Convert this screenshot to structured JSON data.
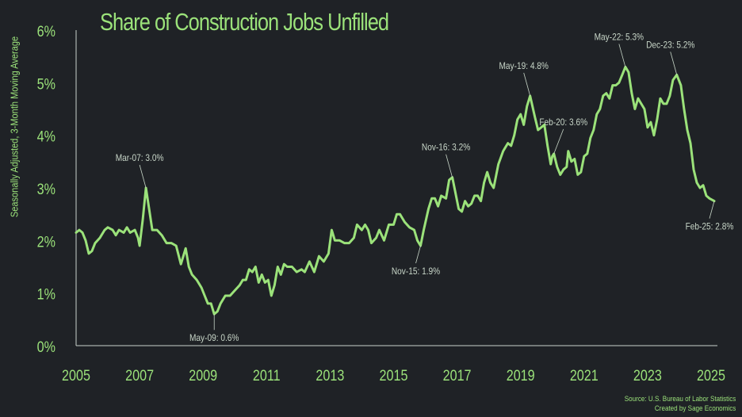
{
  "chart_data": {
    "type": "line",
    "title": "Share of Construction Jobs Unfilled",
    "ylabel": "Seasonally Adjusted, 3-Month Moving Average",
    "xlabel": "",
    "xlim": [
      2005,
      2025.2
    ],
    "ylim": [
      0,
      6
    ],
    "x_ticks": [
      "2005",
      "2007",
      "2009",
      "2011",
      "2013",
      "2015",
      "2017",
      "2019",
      "2021",
      "2023",
      "2025"
    ],
    "y_ticks": [
      "0%",
      "1%",
      "2%",
      "3%",
      "4%",
      "5%",
      "6%"
    ],
    "line_color": "#9be27a",
    "grid": false,
    "series": [
      {
        "points": [
          [
            2005.0,
            2.15
          ],
          [
            2005.1,
            2.2
          ],
          [
            2005.2,
            2.15
          ],
          [
            2005.3,
            2.0
          ],
          [
            2005.4,
            1.75
          ],
          [
            2005.5,
            1.8
          ],
          [
            2005.6,
            1.95
          ],
          [
            2005.75,
            2.05
          ],
          [
            2005.9,
            2.2
          ],
          [
            2006.0,
            2.25
          ],
          [
            2006.15,
            2.2
          ],
          [
            2006.25,
            2.1
          ],
          [
            2006.35,
            2.2
          ],
          [
            2006.5,
            2.15
          ],
          [
            2006.6,
            2.25
          ],
          [
            2006.7,
            2.15
          ],
          [
            2006.85,
            2.2
          ],
          [
            2006.95,
            2.05
          ],
          [
            2007.0,
            1.9
          ],
          [
            2007.1,
            2.4
          ],
          [
            2007.2,
            3.0
          ],
          [
            2007.3,
            2.6
          ],
          [
            2007.4,
            2.2
          ],
          [
            2007.55,
            2.2
          ],
          [
            2007.7,
            2.1
          ],
          [
            2007.85,
            1.95
          ],
          [
            2008.0,
            1.95
          ],
          [
            2008.15,
            1.9
          ],
          [
            2008.3,
            1.55
          ],
          [
            2008.45,
            1.85
          ],
          [
            2008.55,
            1.5
          ],
          [
            2008.65,
            1.35
          ],
          [
            2008.8,
            1.25
          ],
          [
            2008.95,
            1.1
          ],
          [
            2009.05,
            0.95
          ],
          [
            2009.15,
            0.8
          ],
          [
            2009.25,
            0.8
          ],
          [
            2009.35,
            0.6
          ],
          [
            2009.45,
            0.65
          ],
          [
            2009.55,
            0.8
          ],
          [
            2009.7,
            0.95
          ],
          [
            2009.85,
            0.95
          ],
          [
            2010.0,
            1.05
          ],
          [
            2010.15,
            1.15
          ],
          [
            2010.25,
            1.25
          ],
          [
            2010.35,
            1.25
          ],
          [
            2010.45,
            1.45
          ],
          [
            2010.55,
            1.4
          ],
          [
            2010.65,
            1.5
          ],
          [
            2010.75,
            1.2
          ],
          [
            2010.85,
            1.35
          ],
          [
            2010.95,
            1.2
          ],
          [
            2011.05,
            1.25
          ],
          [
            2011.15,
            0.95
          ],
          [
            2011.25,
            1.15
          ],
          [
            2011.35,
            1.5
          ],
          [
            2011.45,
            1.35
          ],
          [
            2011.55,
            1.55
          ],
          [
            2011.65,
            1.5
          ],
          [
            2011.8,
            1.5
          ],
          [
            2011.95,
            1.4
          ],
          [
            2012.1,
            1.45
          ],
          [
            2012.2,
            1.4
          ],
          [
            2012.35,
            1.6
          ],
          [
            2012.5,
            1.4
          ],
          [
            2012.65,
            1.7
          ],
          [
            2012.8,
            1.6
          ],
          [
            2012.95,
            1.75
          ],
          [
            2013.05,
            2.2
          ],
          [
            2013.15,
            2.0
          ],
          [
            2013.3,
            2.0
          ],
          [
            2013.45,
            1.95
          ],
          [
            2013.6,
            1.95
          ],
          [
            2013.75,
            2.05
          ],
          [
            2013.85,
            2.3
          ],
          [
            2014.0,
            2.2
          ],
          [
            2014.1,
            2.3
          ],
          [
            2014.2,
            2.2
          ],
          [
            2014.3,
            1.95
          ],
          [
            2014.45,
            2.05
          ],
          [
            2014.55,
            2.2
          ],
          [
            2014.7,
            2.0
          ],
          [
            2014.85,
            2.3
          ],
          [
            2015.0,
            2.3
          ],
          [
            2015.1,
            2.5
          ],
          [
            2015.2,
            2.5
          ],
          [
            2015.35,
            2.35
          ],
          [
            2015.5,
            2.25
          ],
          [
            2015.65,
            2.2
          ],
          [
            2015.75,
            2.0
          ],
          [
            2015.85,
            1.9
          ],
          [
            2015.95,
            2.2
          ],
          [
            2016.1,
            2.6
          ],
          [
            2016.2,
            2.8
          ],
          [
            2016.3,
            2.8
          ],
          [
            2016.4,
            2.65
          ],
          [
            2016.5,
            2.85
          ],
          [
            2016.65,
            2.8
          ],
          [
            2016.75,
            3.15
          ],
          [
            2016.85,
            3.2
          ],
          [
            2016.95,
            2.9
          ],
          [
            2017.05,
            2.6
          ],
          [
            2017.15,
            2.55
          ],
          [
            2017.25,
            2.75
          ],
          [
            2017.35,
            2.65
          ],
          [
            2017.45,
            2.7
          ],
          [
            2017.55,
            2.85
          ],
          [
            2017.65,
            2.85
          ],
          [
            2017.75,
            2.75
          ],
          [
            2017.85,
            3.1
          ],
          [
            2017.95,
            3.3
          ],
          [
            2018.05,
            3.1
          ],
          [
            2018.15,
            3.0
          ],
          [
            2018.3,
            3.45
          ],
          [
            2018.45,
            3.7
          ],
          [
            2018.6,
            3.85
          ],
          [
            2018.7,
            3.8
          ],
          [
            2018.8,
            4.0
          ],
          [
            2018.9,
            4.3
          ],
          [
            2019.0,
            4.4
          ],
          [
            2019.1,
            4.2
          ],
          [
            2019.2,
            4.55
          ],
          [
            2019.3,
            4.75
          ],
          [
            2019.45,
            4.35
          ],
          [
            2019.55,
            4.1
          ],
          [
            2019.65,
            4.15
          ],
          [
            2019.75,
            4.2
          ],
          [
            2019.85,
            3.8
          ],
          [
            2019.95,
            3.45
          ],
          [
            2020.0,
            3.6
          ],
          [
            2020.05,
            3.65
          ],
          [
            2020.15,
            3.4
          ],
          [
            2020.25,
            3.25
          ],
          [
            2020.35,
            3.35
          ],
          [
            2020.45,
            3.4
          ],
          [
            2020.5,
            3.7
          ],
          [
            2020.6,
            3.5
          ],
          [
            2020.7,
            3.55
          ],
          [
            2020.8,
            3.25
          ],
          [
            2020.9,
            3.3
          ],
          [
            2021.0,
            3.6
          ],
          [
            2021.1,
            3.65
          ],
          [
            2021.2,
            3.95
          ],
          [
            2021.3,
            4.1
          ],
          [
            2021.4,
            4.4
          ],
          [
            2021.5,
            4.5
          ],
          [
            2021.6,
            4.75
          ],
          [
            2021.7,
            4.8
          ],
          [
            2021.8,
            4.7
          ],
          [
            2021.9,
            4.95
          ],
          [
            2022.0,
            4.95
          ],
          [
            2022.1,
            5.0
          ],
          [
            2022.2,
            5.15
          ],
          [
            2022.3,
            5.3
          ],
          [
            2022.4,
            5.2
          ],
          [
            2022.5,
            4.8
          ],
          [
            2022.6,
            4.5
          ],
          [
            2022.7,
            4.7
          ],
          [
            2022.8,
            4.6
          ],
          [
            2022.9,
            4.5
          ],
          [
            2023.0,
            4.15
          ],
          [
            2023.1,
            4.25
          ],
          [
            2023.2,
            4.0
          ],
          [
            2023.3,
            4.3
          ],
          [
            2023.4,
            4.7
          ],
          [
            2023.5,
            4.6
          ],
          [
            2023.6,
            4.6
          ],
          [
            2023.7,
            4.75
          ],
          [
            2023.8,
            5.05
          ],
          [
            2023.92,
            5.15
          ],
          [
            2024.05,
            4.95
          ],
          [
            2024.15,
            4.5
          ],
          [
            2024.25,
            4.1
          ],
          [
            2024.35,
            3.85
          ],
          [
            2024.45,
            3.35
          ],
          [
            2024.55,
            3.1
          ],
          [
            2024.65,
            3.0
          ],
          [
            2024.75,
            3.05
          ],
          [
            2024.85,
            2.85
          ],
          [
            2024.95,
            2.8
          ],
          [
            2025.1,
            2.75
          ]
        ]
      }
    ],
    "annotations": [
      {
        "label": "Mar-07: 3.0%",
        "x": 2007.2,
        "y": 3.0,
        "placement": "above-left"
      },
      {
        "label": "May-09: 0.6%",
        "x": 2009.35,
        "y": 0.6,
        "placement": "below"
      },
      {
        "label": "Nov-15: 1.9%",
        "x": 2015.85,
        "y": 1.9,
        "placement": "below-left"
      },
      {
        "label": "Nov-16: 3.2%",
        "x": 2016.85,
        "y": 3.2,
        "placement": "above-left"
      },
      {
        "label": "May-19: 4.8%",
        "x": 2019.3,
        "y": 4.75,
        "placement": "above-left"
      },
      {
        "label": "Feb-20: 3.6%",
        "x": 2020.05,
        "y": 3.65,
        "placement": "above-right"
      },
      {
        "label": "May-22: 5.3%",
        "x": 2022.3,
        "y": 5.3,
        "placement": "above-left"
      },
      {
        "label": "Dec-23: 5.2%",
        "x": 2023.92,
        "y": 5.15,
        "placement": "above-left"
      },
      {
        "label": "Feb-25: 2.8%",
        "x": 2025.1,
        "y": 2.75,
        "placement": "below-left"
      }
    ]
  },
  "source": {
    "line1": "Source: U.S. Bureau of Labor Statistics",
    "line2": "Created by Sage Economics"
  }
}
